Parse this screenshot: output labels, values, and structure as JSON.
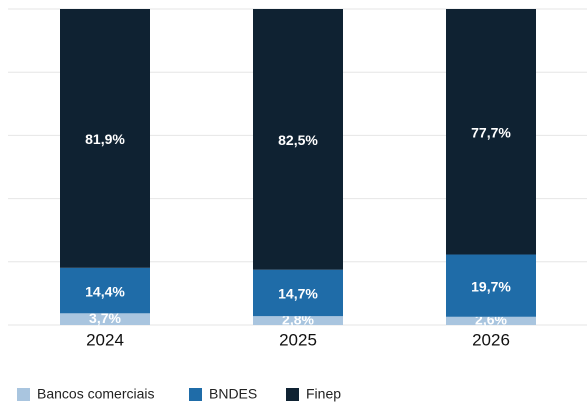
{
  "chart_data": {
    "type": "stacked_bar",
    "categories": [
      "2024",
      "2025",
      "2026"
    ],
    "series": [
      {
        "name": "Bancos comerciais",
        "color": "#a9c5df",
        "values": [
          3.7,
          2.8,
          2.6
        ],
        "value_labels": [
          "3,7%",
          "2,8%",
          "2,6%"
        ]
      },
      {
        "name": "BNDES",
        "color": "#1f6ca8",
        "values": [
          14.4,
          14.7,
          19.7
        ],
        "value_labels": [
          "14,4%",
          "14,7%",
          "19,7%"
        ]
      },
      {
        "name": "Finep",
        "color": "#0f2232",
        "values": [
          81.9,
          82.5,
          77.7
        ],
        "value_labels": [
          "81,9%",
          "82,5%",
          "77,7%"
        ]
      }
    ],
    "ylim": [
      0,
      100
    ],
    "yticks": [
      0,
      20,
      40,
      60,
      80,
      100
    ],
    "grid": true,
    "legend": "bottom"
  }
}
